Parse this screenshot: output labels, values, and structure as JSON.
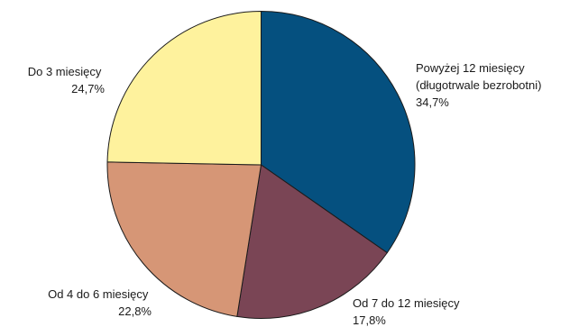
{
  "chart_data": {
    "type": "pie",
    "title": "",
    "slices": [
      {
        "lines": [
          "Powyżej 12 miesięcy",
          "(długotrwale bezrobotni)"
        ],
        "value_label": "34,7%",
        "value": 34.7,
        "color": "#05507f"
      },
      {
        "lines": [
          "Od 7 do 12 miesięcy"
        ],
        "value_label": "17,8%",
        "value": 17.8,
        "color": "#7a4555"
      },
      {
        "lines": [
          "Od 4 do 6 miesięcy"
        ],
        "value_label": "22,8%",
        "value": 22.8,
        "color": "#d69676"
      },
      {
        "lines": [
          "Do 3 miesięcy"
        ],
        "value_label": "24,7%",
        "value": 24.7,
        "color": "#fef29d"
      }
    ]
  }
}
